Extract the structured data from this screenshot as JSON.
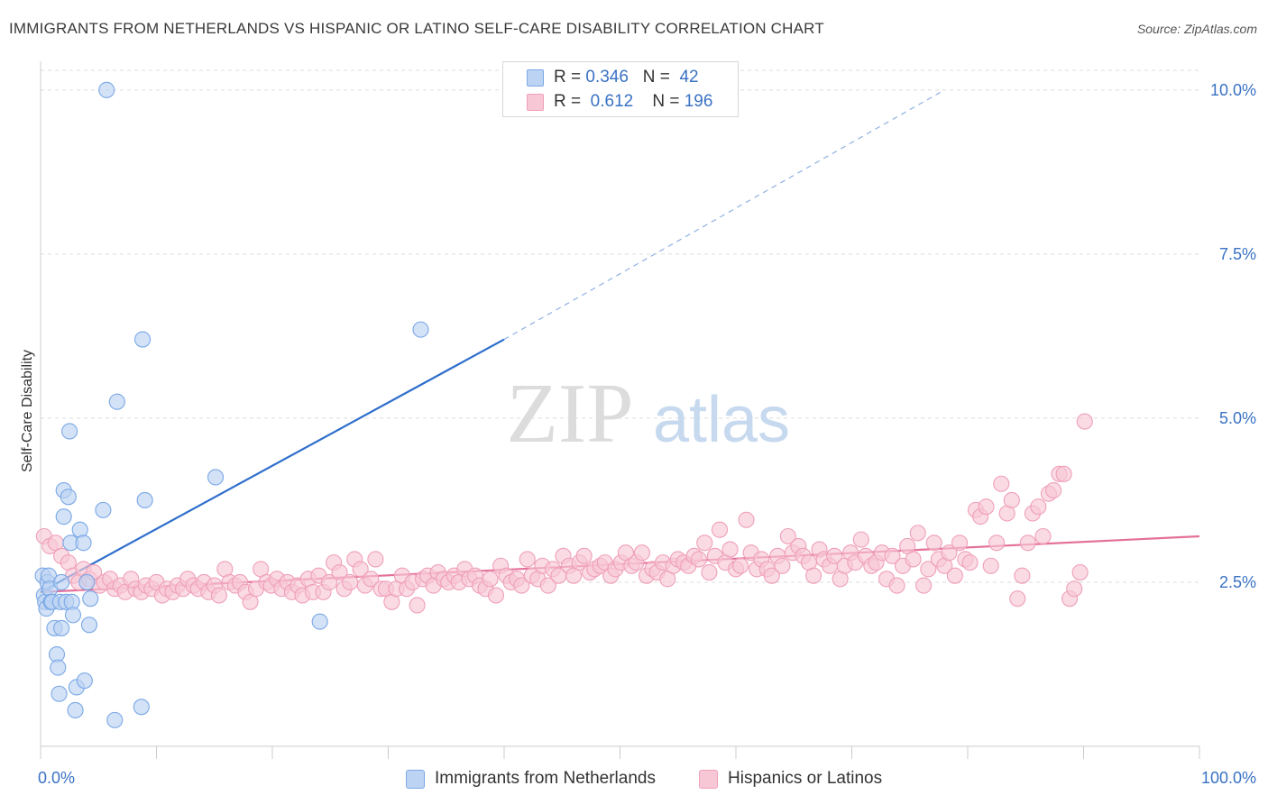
{
  "title": "IMMIGRANTS FROM NETHERLANDS VS HISPANIC OR LATINO SELF-CARE DISABILITY CORRELATION CHART",
  "source": "Source: ZipAtlas.com",
  "watermark": {
    "zip": "ZIP",
    "atlas": "atlas"
  },
  "legend": {
    "rows": [
      {
        "r_label": "R =",
        "r_value": "0.346",
        "n_label": "N =",
        "n_value": "42"
      },
      {
        "r_label": "R =",
        "r_value": "0.612",
        "n_label": "N =",
        "n_value": "196"
      }
    ]
  },
  "chart_data": {
    "type": "scatter",
    "title": "IMMIGRANTS FROM NETHERLANDS VS HISPANIC OR LATINO SELF-CARE DISABILITY CORRELATION CHART",
    "xlabel": "",
    "ylabel": "Self-Care Disability",
    "xlim": [
      0,
      100
    ],
    "ylim": [
      0,
      10.3
    ],
    "x_tick_labels": [
      "0.0%",
      "100.0%"
    ],
    "y_ticks": [
      2.5,
      5.0,
      7.5,
      10.0
    ],
    "y_tick_labels": [
      "2.5%",
      "5.0%",
      "7.5%",
      "10.0%"
    ],
    "grid": true,
    "legend_position": "bottom",
    "series": [
      {
        "name": "Immigrants from Netherlands",
        "color": "#7aa8e6",
        "fill": "#bcd3f3",
        "line_color": "#2f6fcc",
        "r": 0.346,
        "n": 42,
        "trend": {
          "x0": 0,
          "y0": 2.35,
          "x1": 40,
          "y1": 6.2,
          "dashed_to_x": 78,
          "dashed_to_y": 10.0
        },
        "points": [
          [
            0.2,
            2.6
          ],
          [
            0.3,
            2.3
          ],
          [
            0.4,
            2.2
          ],
          [
            0.5,
            2.1
          ],
          [
            0.6,
            2.5
          ],
          [
            0.7,
            2.6
          ],
          [
            0.8,
            2.4
          ],
          [
            0.9,
            2.2
          ],
          [
            1.0,
            2.2
          ],
          [
            1.2,
            1.8
          ],
          [
            1.4,
            1.4
          ],
          [
            1.5,
            1.2
          ],
          [
            1.6,
            0.8
          ],
          [
            1.7,
            2.2
          ],
          [
            1.8,
            1.8
          ],
          [
            2.0,
            3.9
          ],
          [
            2.0,
            3.5
          ],
          [
            2.2,
            2.2
          ],
          [
            2.4,
            3.8
          ],
          [
            2.5,
            4.8
          ],
          [
            2.6,
            3.1
          ],
          [
            2.7,
            2.2
          ],
          [
            2.8,
            2.0
          ],
          [
            3.0,
            0.55
          ],
          [
            3.1,
            0.9
          ],
          [
            3.4,
            3.3
          ],
          [
            3.7,
            3.1
          ],
          [
            3.8,
            1.0
          ],
          [
            4.0,
            2.5
          ],
          [
            4.2,
            1.85
          ],
          [
            4.3,
            2.25
          ],
          [
            5.4,
            3.6
          ],
          [
            5.7,
            10.0
          ],
          [
            6.4,
            0.4
          ],
          [
            6.6,
            5.25
          ],
          [
            8.7,
            0.6
          ],
          [
            8.8,
            6.2
          ],
          [
            9.0,
            3.75
          ],
          [
            15.1,
            4.1
          ],
          [
            24.1,
            1.9
          ],
          [
            32.8,
            6.35
          ],
          [
            1.8,
            2.5
          ]
        ]
      },
      {
        "name": "Hispanics or Latinos",
        "color": "#ef9fb9",
        "fill": "#f8c7d6",
        "line_color": "#e4709a",
        "r": 0.612,
        "n": 196,
        "trend": {
          "x0": 0,
          "y0": 2.35,
          "x1": 100,
          "y1": 3.2
        },
        "points": [
          [
            0.3,
            3.2
          ],
          [
            0.8,
            3.05
          ],
          [
            1.3,
            3.1
          ],
          [
            1.8,
            2.9
          ],
          [
            2.4,
            2.8
          ],
          [
            2.8,
            2.6
          ],
          [
            3.3,
            2.5
          ],
          [
            3.7,
            2.7
          ],
          [
            4.2,
            2.55
          ],
          [
            4.6,
            2.65
          ],
          [
            5.1,
            2.45
          ],
          [
            5.5,
            2.5
          ],
          [
            6.0,
            2.55
          ],
          [
            6.4,
            2.4
          ],
          [
            6.9,
            2.45
          ],
          [
            7.3,
            2.35
          ],
          [
            7.8,
            2.55
          ],
          [
            8.2,
            2.4
          ],
          [
            8.7,
            2.35
          ],
          [
            9.1,
            2.45
          ],
          [
            9.6,
            2.4
          ],
          [
            10.0,
            2.5
          ],
          [
            10.5,
            2.3
          ],
          [
            10.9,
            2.4
          ],
          [
            11.4,
            2.35
          ],
          [
            11.8,
            2.45
          ],
          [
            12.3,
            2.4
          ],
          [
            12.7,
            2.55
          ],
          [
            13.2,
            2.45
          ],
          [
            13.6,
            2.4
          ],
          [
            14.1,
            2.5
          ],
          [
            14.5,
            2.35
          ],
          [
            15.0,
            2.45
          ],
          [
            15.4,
            2.3
          ],
          [
            15.9,
            2.7
          ],
          [
            16.3,
            2.5
          ],
          [
            16.8,
            2.45
          ],
          [
            17.2,
            2.5
          ],
          [
            17.7,
            2.35
          ],
          [
            18.1,
            2.2
          ],
          [
            18.6,
            2.4
          ],
          [
            19.0,
            2.7
          ],
          [
            19.5,
            2.5
          ],
          [
            19.9,
            2.45
          ],
          [
            20.4,
            2.55
          ],
          [
            20.8,
            2.4
          ],
          [
            21.3,
            2.5
          ],
          [
            21.7,
            2.35
          ],
          [
            22.2,
            2.45
          ],
          [
            22.6,
            2.3
          ],
          [
            23.1,
            2.55
          ],
          [
            23.5,
            2.35
          ],
          [
            24.0,
            2.6
          ],
          [
            24.4,
            2.35
          ],
          [
            24.9,
            2.5
          ],
          [
            25.3,
            2.8
          ],
          [
            25.8,
            2.65
          ],
          [
            26.2,
            2.4
          ],
          [
            26.7,
            2.5
          ],
          [
            27.1,
            2.85
          ],
          [
            27.6,
            2.7
          ],
          [
            28.0,
            2.45
          ],
          [
            28.5,
            2.55
          ],
          [
            28.9,
            2.85
          ],
          [
            29.4,
            2.4
          ],
          [
            29.8,
            2.4
          ],
          [
            30.3,
            2.2
          ],
          [
            30.7,
            2.4
          ],
          [
            31.2,
            2.6
          ],
          [
            31.6,
            2.4
          ],
          [
            32.1,
            2.5
          ],
          [
            32.5,
            2.15
          ],
          [
            33.0,
            2.55
          ],
          [
            33.4,
            2.6
          ],
          [
            33.9,
            2.45
          ],
          [
            34.3,
            2.65
          ],
          [
            34.8,
            2.55
          ],
          [
            35.2,
            2.5
          ],
          [
            35.7,
            2.6
          ],
          [
            36.1,
            2.5
          ],
          [
            36.6,
            2.7
          ],
          [
            37.0,
            2.55
          ],
          [
            37.5,
            2.6
          ],
          [
            37.9,
            2.45
          ],
          [
            38.4,
            2.4
          ],
          [
            38.8,
            2.55
          ],
          [
            39.3,
            2.3
          ],
          [
            39.7,
            2.75
          ],
          [
            40.2,
            2.6
          ],
          [
            40.6,
            2.5
          ],
          [
            41.1,
            2.55
          ],
          [
            41.5,
            2.45
          ],
          [
            42.0,
            2.85
          ],
          [
            42.4,
            2.6
          ],
          [
            42.9,
            2.55
          ],
          [
            43.3,
            2.75
          ],
          [
            43.8,
            2.45
          ],
          [
            44.2,
            2.7
          ],
          [
            44.7,
            2.6
          ],
          [
            45.1,
            2.9
          ],
          [
            45.6,
            2.75
          ],
          [
            46.0,
            2.6
          ],
          [
            46.5,
            2.8
          ],
          [
            46.9,
            2.9
          ],
          [
            47.4,
            2.65
          ],
          [
            47.8,
            2.7
          ],
          [
            48.3,
            2.75
          ],
          [
            48.7,
            2.8
          ],
          [
            49.2,
            2.6
          ],
          [
            49.6,
            2.7
          ],
          [
            50.1,
            2.8
          ],
          [
            50.5,
            2.95
          ],
          [
            51.0,
            2.75
          ],
          [
            51.4,
            2.8
          ],
          [
            51.9,
            2.95
          ],
          [
            52.3,
            2.6
          ],
          [
            52.8,
            2.7
          ],
          [
            53.2,
            2.65
          ],
          [
            53.7,
            2.8
          ],
          [
            54.1,
            2.55
          ],
          [
            54.6,
            2.75
          ],
          [
            55.0,
            2.85
          ],
          [
            55.5,
            2.8
          ],
          [
            55.9,
            2.75
          ],
          [
            56.4,
            2.9
          ],
          [
            56.8,
            2.85
          ],
          [
            57.3,
            3.1
          ],
          [
            57.7,
            2.65
          ],
          [
            58.2,
            2.9
          ],
          [
            58.6,
            3.3
          ],
          [
            59.1,
            2.8
          ],
          [
            59.5,
            3.0
          ],
          [
            60.0,
            2.7
          ],
          [
            60.4,
            2.75
          ],
          [
            60.9,
            3.45
          ],
          [
            61.3,
            2.95
          ],
          [
            61.8,
            2.7
          ],
          [
            62.2,
            2.85
          ],
          [
            62.7,
            2.7
          ],
          [
            63.1,
            2.6
          ],
          [
            63.6,
            2.9
          ],
          [
            64.0,
            2.75
          ],
          [
            64.5,
            3.2
          ],
          [
            64.9,
            2.95
          ],
          [
            65.4,
            3.05
          ],
          [
            65.8,
            2.9
          ],
          [
            66.3,
            2.8
          ],
          [
            66.7,
            2.6
          ],
          [
            67.2,
            3.0
          ],
          [
            67.6,
            2.85
          ],
          [
            68.1,
            2.75
          ],
          [
            68.5,
            2.9
          ],
          [
            69.0,
            2.55
          ],
          [
            69.4,
            2.75
          ],
          [
            69.9,
            2.95
          ],
          [
            70.3,
            2.8
          ],
          [
            70.8,
            3.15
          ],
          [
            71.2,
            2.9
          ],
          [
            71.7,
            2.75
          ],
          [
            72.1,
            2.8
          ],
          [
            72.6,
            2.95
          ],
          [
            73.0,
            2.55
          ],
          [
            73.5,
            2.9
          ],
          [
            73.9,
            2.45
          ],
          [
            74.4,
            2.75
          ],
          [
            74.8,
            3.05
          ],
          [
            75.3,
            2.85
          ],
          [
            75.7,
            3.25
          ],
          [
            76.2,
            2.45
          ],
          [
            76.6,
            2.7
          ],
          [
            77.1,
            3.1
          ],
          [
            77.5,
            2.85
          ],
          [
            78.0,
            2.75
          ],
          [
            78.4,
            2.95
          ],
          [
            78.9,
            2.6
          ],
          [
            79.3,
            3.1
          ],
          [
            79.8,
            2.85
          ],
          [
            80.2,
            2.8
          ],
          [
            80.7,
            3.6
          ],
          [
            81.1,
            3.5
          ],
          [
            81.6,
            3.65
          ],
          [
            82.0,
            2.75
          ],
          [
            82.5,
            3.1
          ],
          [
            82.9,
            4.0
          ],
          [
            83.4,
            3.55
          ],
          [
            83.8,
            3.75
          ],
          [
            84.3,
            2.25
          ],
          [
            84.7,
            2.6
          ],
          [
            85.2,
            3.1
          ],
          [
            85.6,
            3.55
          ],
          [
            86.1,
            3.65
          ],
          [
            86.5,
            3.2
          ],
          [
            87.0,
            3.85
          ],
          [
            87.4,
            3.9
          ],
          [
            87.9,
            4.15
          ],
          [
            88.3,
            4.15
          ],
          [
            88.8,
            2.25
          ],
          [
            89.2,
            2.4
          ],
          [
            89.7,
            2.65
          ],
          [
            90.1,
            4.95
          ]
        ]
      }
    ]
  }
}
